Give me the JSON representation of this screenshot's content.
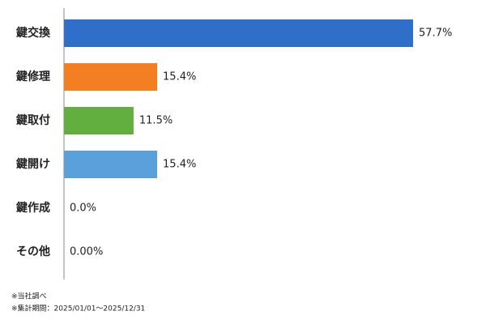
{
  "chart_data": {
    "type": "hbar",
    "categories": [
      "鍵交換",
      "鍵修理",
      "鍵取付",
      "鍵開け",
      "鍵作成",
      "その他"
    ],
    "values": [
      57.7,
      15.4,
      11.5,
      15.4,
      0.0,
      0.0
    ],
    "value_labels": [
      "57.7%",
      "15.4%",
      "11.5%",
      "15.4%",
      "0.0%",
      "0.00%"
    ],
    "colors": [
      "#2f6fca",
      "#f47f22",
      "#62ae3f",
      "#5aa1dc",
      "#2f6fca",
      "#2f6fca"
    ],
    "notes": [
      "※当社調べ",
      "※集計期間：2025/01/01～2025/12/31"
    ]
  }
}
